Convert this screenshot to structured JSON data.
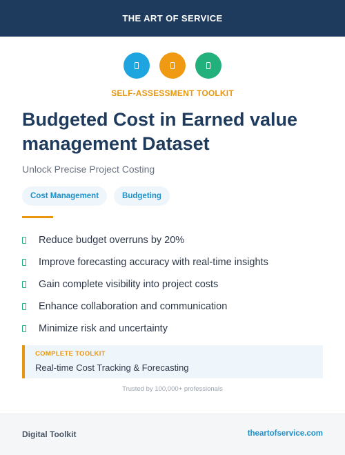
{
  "header": {
    "brand": "THE ART OF SERVICE"
  },
  "icons": [
    {
      "name": "info-icon",
      "color": "#1ea5e0"
    },
    {
      "name": "document-icon",
      "color": "#ef9a12"
    },
    {
      "name": "shield-icon",
      "color": "#22b07d"
    }
  ],
  "hero": {
    "kicker": "SELF-ASSESSMENT TOOLKIT",
    "title": "Budgeted Cost in Earned value management Dataset",
    "subtitle": "Unlock Precise Project Costing"
  },
  "tags": [
    "Cost Management",
    "Budgeting"
  ],
  "features": [
    "Reduce budget overruns by 20%",
    "Improve forecasting accuracy with real-time insights",
    "Gain complete visibility into project costs",
    "Enhance collaboration and communication",
    "Minimize risk and uncertainty"
  ],
  "callout": {
    "label": "COMPLETE TOOLKIT",
    "text": "Real-time Cost Tracking & Forecasting"
  },
  "trusted": "Trusted by 100,000+ professionals",
  "footer": {
    "left": "Digital Toolkit",
    "right": "theartofservice.com"
  },
  "colors": {
    "navy": "#1e3a5c",
    "accent": "#e8960f",
    "link": "#1e90c8",
    "check": "#22b07d"
  }
}
